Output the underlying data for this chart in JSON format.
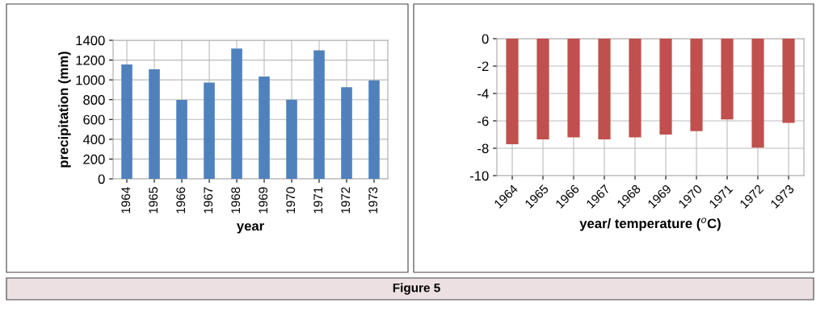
{
  "chart_data": [
    {
      "type": "bar",
      "xlabel": "year",
      "ylabel": "precipitation (mm)",
      "categories": [
        "1964",
        "1965",
        "1966",
        "1967",
        "1968",
        "1969",
        "1970",
        "1971",
        "1972",
        "1973"
      ],
      "series": [
        {
          "color": "#4f81bd",
          "values": [
            1155,
            1107,
            797,
            972,
            1317,
            1034,
            800,
            1298,
            926,
            996
          ]
        }
      ],
      "ylim": [
        0,
        1400
      ],
      "yticks": [
        0,
        200,
        400,
        600,
        800,
        1000,
        1200,
        1400
      ],
      "grid": true,
      "legend": false
    },
    {
      "type": "bar",
      "xlabel": "year/ temperature ($^{o}$C)",
      "categories": [
        "1964",
        "1965",
        "1966",
        "1967",
        "1968",
        "1969",
        "1970",
        "1971",
        "1972",
        "1973"
      ],
      "series": [
        {
          "color": "#c0504d",
          "values": [
            -7.7,
            -7.35,
            -7.2,
            -7.35,
            -7.2,
            -7.0,
            -6.75,
            -5.9,
            -7.95,
            -6.15
          ]
        }
      ],
      "ylim": [
        -10,
        0
      ],
      "yticks": [
        -10,
        -8,
        -6,
        -4,
        -2,
        0
      ],
      "grid": true,
      "legend": false,
      "annotations": [
        "Figure 5"
      ]
    }
  ]
}
